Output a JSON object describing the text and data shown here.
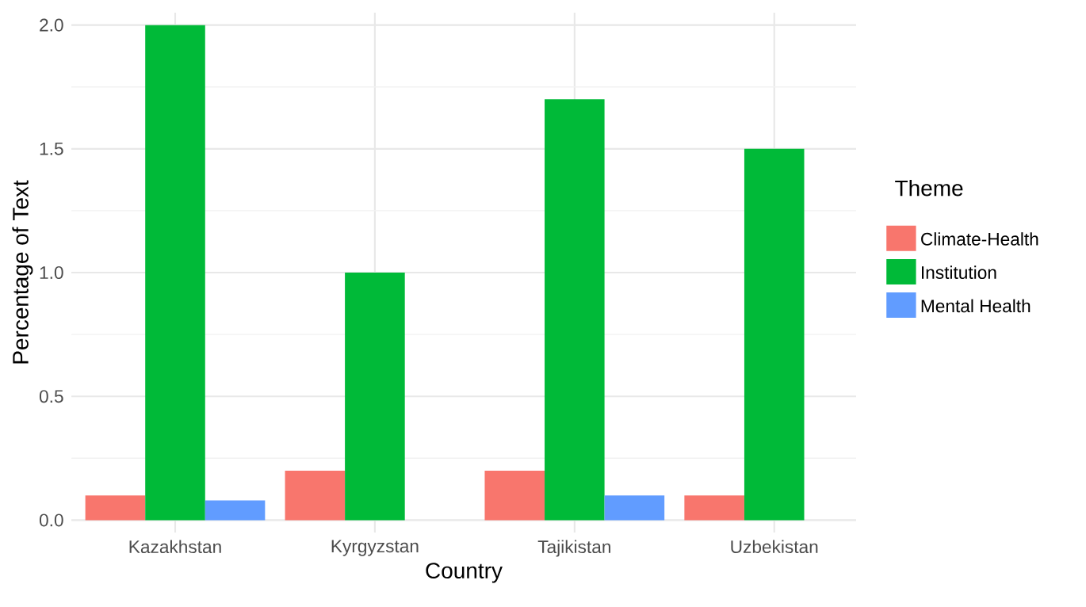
{
  "chart_data": {
    "type": "bar",
    "xlabel": "Country",
    "ylabel": "Percentage of Text",
    "legend_title": "Theme",
    "categories": [
      "Kazakhstan",
      "Kyrgyzstan",
      "Tajikistan",
      "Uzbekistan"
    ],
    "series": [
      {
        "name": "Climate-Health",
        "color": "#f8766d",
        "values": [
          0.1,
          0.2,
          0.2,
          0.1
        ]
      },
      {
        "name": "Institution",
        "color": "#00ba38",
        "values": [
          2.0,
          1.0,
          1.7,
          1.5
        ]
      },
      {
        "name": "Mental Health",
        "color": "#619cff",
        "values": [
          0.08,
          null,
          0.1,
          null
        ]
      }
    ],
    "ylim": [
      -0.05,
      2.05
    ],
    "yticks": [
      {
        "value": 0,
        "label": "0.0"
      },
      {
        "value": 0.5,
        "label": "0.5"
      },
      {
        "value": 1,
        "label": "1.0"
      },
      {
        "value": 1.5,
        "label": "1.5"
      },
      {
        "value": 2,
        "label": "2.0"
      }
    ],
    "grid": true,
    "legend": "right"
  }
}
